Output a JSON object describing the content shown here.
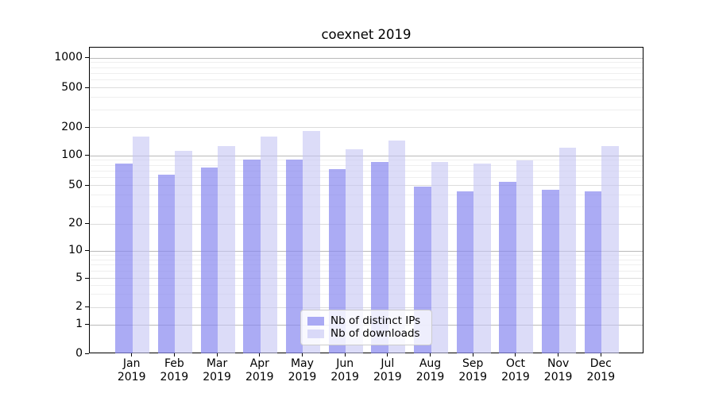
{
  "chart_data": {
    "type": "bar",
    "title": "coexnet 2019",
    "categories": [
      "Jan 2019",
      "Feb 2019",
      "Mar 2019",
      "Apr 2019",
      "May 2019",
      "Jun 2019",
      "Jul 2019",
      "Aug 2019",
      "Sep 2019",
      "Oct 2019",
      "Nov 2019",
      "Dec 2019"
    ],
    "series": [
      {
        "name": "Nb of distinct IPs",
        "color": "rgba(136,136,240,0.70)",
        "apparent_hex": "#aaaaf7",
        "values": [
          84,
          65,
          77,
          93,
          93,
          74,
          88,
          49,
          44,
          55,
          46,
          44
        ]
      },
      {
        "name": "Nb of downloads",
        "color": "rgba(196,196,244,0.60)",
        "apparent_hex": "#d9d9fa",
        "values": [
          160,
          113,
          128,
          161,
          185,
          118,
          146,
          88,
          84,
          91,
          124,
          129
        ]
      }
    ],
    "xlabel": "",
    "ylabel": "",
    "yscale": "symlog",
    "yticks": [
      0,
      1,
      2,
      5,
      10,
      20,
      50,
      100,
      200,
      500,
      1000
    ],
    "ylim": [
      0,
      1280
    ],
    "grid": true,
    "legend_position": "lower center",
    "background": "#ffffff"
  }
}
